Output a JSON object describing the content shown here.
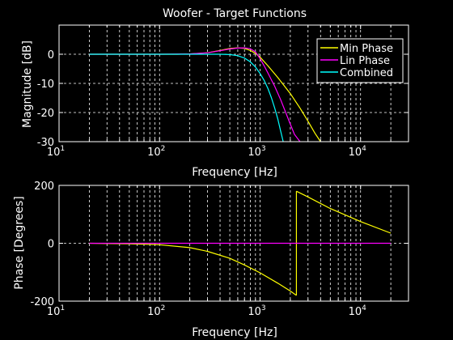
{
  "figure": {
    "background": "#000000",
    "foreground": "#ffffff"
  },
  "chart_data": [
    {
      "type": "line",
      "title": "Woofer - Target Functions",
      "xlabel": "Frequency [Hz]",
      "ylabel": "Magnitude [dB]",
      "xscale": "log",
      "xlim": [
        10,
        30000
      ],
      "ylim": [
        -30,
        10
      ],
      "xticks": {
        "base": "10",
        "exponents": [
          "1",
          "2",
          "3",
          "4"
        ]
      },
      "yticks": [
        "0",
        "-10",
        "-20",
        "-30"
      ],
      "grid": true,
      "legend": {
        "position": "top-right",
        "entries": [
          "Min Phase",
          "Lin Phase",
          "Combined"
        ]
      },
      "series": [
        {
          "name": "Min Phase",
          "color": "#ffff00",
          "x": [
            20,
            50,
            100,
            150,
            200,
            300,
            400,
            500,
            600,
            700,
            800,
            900,
            1000,
            1200,
            1500,
            2000,
            2500,
            3000,
            3500,
            4000
          ],
          "y": [
            0,
            0,
            0,
            0,
            0.1,
            0.5,
            1.3,
            2.0,
            2.2,
            2.0,
            1.3,
            0.3,
            -1.0,
            -4.0,
            -8.0,
            -13.5,
            -18.5,
            -23.0,
            -27.0,
            -30.0
          ]
        },
        {
          "name": "Lin Phase",
          "color": "#ff00ff",
          "x": [
            20,
            50,
            100,
            200,
            300,
            400,
            500,
            600,
            700,
            800,
            900,
            1000,
            1100,
            1200,
            1400,
            1600,
            1800,
            2000,
            2200,
            2500
          ],
          "y": [
            0,
            0,
            0,
            0.1,
            0.5,
            1.2,
            1.8,
            2.1,
            2.2,
            1.9,
            0.8,
            -1.5,
            -4.0,
            -6.5,
            -11.0,
            -15.5,
            -20.0,
            -24.0,
            -27.5,
            -30.0
          ]
        },
        {
          "name": "Combined",
          "color": "#00ffff",
          "x": [
            20,
            50,
            100,
            200,
            300,
            400,
            500,
            600,
            700,
            800,
            900,
            1000,
            1100,
            1200,
            1300,
            1400,
            1500,
            1600,
            1700
          ],
          "y": [
            0,
            0,
            0,
            0,
            0,
            0,
            -0.1,
            -0.5,
            -1.3,
            -2.6,
            -4.4,
            -6.6,
            -9.0,
            -11.8,
            -15.0,
            -18.5,
            -22.2,
            -26.2,
            -30.0
          ]
        }
      ]
    },
    {
      "type": "line",
      "title": "",
      "xlabel": "Frequency [Hz]",
      "ylabel": "Phase [Degrees]",
      "xscale": "log",
      "xlim": [
        10,
        30000
      ],
      "ylim": [
        -200,
        200
      ],
      "xticks": {
        "base": "10",
        "exponents": [
          "1",
          "2",
          "3",
          "4"
        ]
      },
      "yticks": [
        "200",
        "0",
        "-200"
      ],
      "grid": true,
      "series": [
        {
          "name": "Min Phase",
          "color": "#ffff00",
          "x": [
            20,
            50,
            100,
            200,
            300,
            500,
            700,
            1000,
            1500,
            2000,
            2300,
            2300,
            3000,
            5000,
            10000,
            20000
          ],
          "y": [
            0,
            -2,
            -5,
            -15,
            -28,
            -52,
            -75,
            -102,
            -138,
            -165,
            -180,
            180,
            160,
            120,
            75,
            35
          ]
        },
        {
          "name": "Lin Phase",
          "color": "#ff00ff",
          "x": [
            20,
            20000
          ],
          "y": [
            0,
            0
          ]
        }
      ]
    }
  ]
}
